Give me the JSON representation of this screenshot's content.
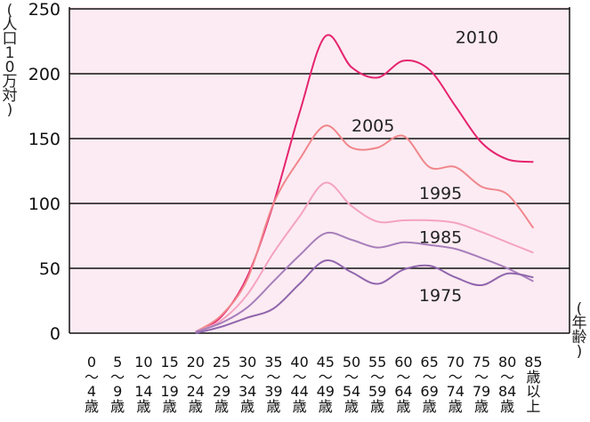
{
  "chart_data": {
    "type": "line",
    "ylabel": "(人口10万対)",
    "xlabel": "(年齢)",
    "ylim": [
      0,
      250
    ],
    "yticks": [
      0,
      50,
      100,
      150,
      200,
      250
    ],
    "grid": true,
    "categories": [
      "0〜4歳",
      "5〜9歳",
      "10〜14歳",
      "15〜19歳",
      "20〜24歳",
      "25〜29歳",
      "30〜34歳",
      "35〜39歳",
      "40〜44歳",
      "45〜49歳",
      "50〜54歳",
      "55〜59歳",
      "60〜64歳",
      "65〜69歳",
      "70〜74歳",
      "75〜79歳",
      "80〜84歳",
      "85歳以上"
    ],
    "category_lines": [
      [
        "0",
        "〜",
        "4",
        "歳"
      ],
      [
        "5",
        "〜",
        "9",
        "歳"
      ],
      [
        "10",
        "〜",
        "14",
        "歳"
      ],
      [
        "15",
        "〜",
        "19",
        "歳"
      ],
      [
        "20",
        "〜",
        "24",
        "歳"
      ],
      [
        "25",
        "〜",
        "29",
        "歳"
      ],
      [
        "30",
        "〜",
        "34",
        "歳"
      ],
      [
        "35",
        "〜",
        "39",
        "歳"
      ],
      [
        "40",
        "〜",
        "44",
        "歳"
      ],
      [
        "45",
        "〜",
        "49",
        "歳"
      ],
      [
        "50",
        "〜",
        "54",
        "歳"
      ],
      [
        "55",
        "〜",
        "59",
        "歳"
      ],
      [
        "60",
        "〜",
        "64",
        "歳"
      ],
      [
        "65",
        "〜",
        "69",
        "歳"
      ],
      [
        "70",
        "〜",
        "74",
        "歳"
      ],
      [
        "75",
        "〜",
        "79",
        "歳"
      ],
      [
        "80",
        "〜",
        "84",
        "歳"
      ],
      [
        "85",
        "歳",
        "以",
        "上"
      ]
    ],
    "series": [
      {
        "name": "2010",
        "color": "#e5246f",
        "label_at": [
          14,
          229
        ],
        "values": [
          null,
          null,
          null,
          null,
          1,
          13,
          44,
          100,
          170,
          229,
          205,
          197,
          210,
          203,
          175,
          147,
          134,
          132
        ]
      },
      {
        "name": "2005",
        "color": "#f0868c",
        "label_at": [
          10,
          161
        ],
        "values": [
          null,
          null,
          null,
          null,
          1,
          14,
          42,
          100,
          134,
          160,
          143,
          143,
          152,
          128,
          128,
          113,
          107,
          81
        ]
      },
      {
        "name": "1995",
        "color": "#f4a3bf",
        "label_at": [
          12.6,
          109
        ],
        "values": [
          null,
          null,
          null,
          null,
          1,
          10,
          30,
          62,
          90,
          116,
          98,
          86,
          87,
          87,
          85,
          78,
          70,
          62
        ]
      },
      {
        "name": "1985",
        "color": "#a77ebb",
        "label_at": [
          12.6,
          75
        ],
        "values": [
          null,
          null,
          null,
          null,
          1,
          8,
          20,
          40,
          60,
          77,
          72,
          66,
          70,
          68,
          65,
          58,
          50,
          40
        ]
      },
      {
        "name": "1975",
        "color": "#9065ad",
        "label_at": [
          12.6,
          30
        ],
        "values": [
          null,
          null,
          null,
          null,
          0,
          5,
          12,
          19,
          38,
          56,
          47,
          38,
          49,
          52,
          43,
          37,
          46,
          43
        ]
      }
    ],
    "background": "#fcebf2",
    "grid_color": "#111111"
  }
}
